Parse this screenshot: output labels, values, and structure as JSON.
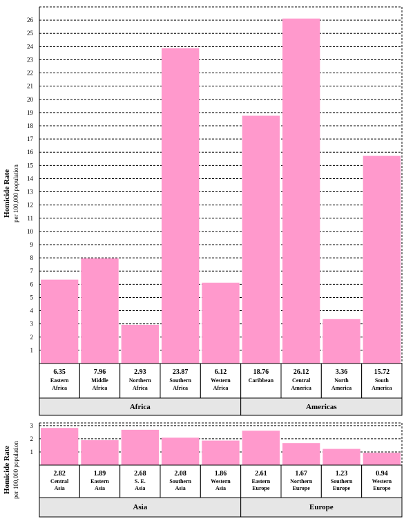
{
  "chart_data": [
    {
      "type": "bar",
      "ylabel": "Homicide Rate",
      "ylabel_sub": "per 100,000 population",
      "ylim": [
        0,
        27
      ],
      "yticks": [
        1,
        2,
        3,
        4,
        5,
        6,
        7,
        8,
        9,
        10,
        11,
        12,
        13,
        14,
        15,
        16,
        17,
        18,
        19,
        20,
        21,
        22,
        23,
        24,
        25,
        26
      ],
      "grid": true,
      "groups": [
        {
          "name": "Africa",
          "categories": [
            {
              "line1": "Eastern",
              "line2": "Africa",
              "value": 6.35,
              "label": "6.35"
            },
            {
              "line1": "Middle",
              "line2": "Africa",
              "value": 7.96,
              "label": "7.96"
            },
            {
              "line1": "Northern",
              "line2": "Africa",
              "value": 2.93,
              "label": "2.93"
            },
            {
              "line1": "Southern",
              "line2": "Africa",
              "value": 23.87,
              "label": "23.87"
            },
            {
              "line1": "Western",
              "line2": "Africa",
              "value": 6.12,
              "label": "6.12"
            }
          ]
        },
        {
          "name": "Americas",
          "categories": [
            {
              "line1": "Caribbean",
              "line2": "",
              "value": 18.76,
              "label": "18.76"
            },
            {
              "line1": "Central",
              "line2": "America",
              "value": 26.12,
              "label": "26.12"
            },
            {
              "line1": "North",
              "line2": "America",
              "value": 3.36,
              "label": "3.36"
            },
            {
              "line1": "South",
              "line2": "America",
              "value": 15.72,
              "label": "15.72"
            }
          ]
        }
      ],
      "bar_color": "#ff99cc"
    },
    {
      "type": "bar",
      "ylabel": "Homicide Rate",
      "ylabel_sub": "per 100,000 population",
      "ylim": [
        0,
        3.2
      ],
      "yticks": [
        1,
        2,
        3
      ],
      "grid": true,
      "groups": [
        {
          "name": "Asia",
          "categories": [
            {
              "line1": "Central",
              "line2": "Asia",
              "value": 2.82,
              "label": "2.82"
            },
            {
              "line1": "Eastern",
              "line2": "Asia",
              "value": 1.89,
              "label": "1.89"
            },
            {
              "line1": "S. E.",
              "line2": "Asia",
              "value": 2.68,
              "label": "2.68"
            },
            {
              "line1": "Southern",
              "line2": "Asia",
              "value": 2.08,
              "label": "2.08"
            },
            {
              "line1": "Western",
              "line2": "Asia",
              "value": 1.86,
              "label": "1.86"
            }
          ]
        },
        {
          "name": "Europe",
          "categories": [
            {
              "line1": "Eastern",
              "line2": "Europe",
              "value": 2.61,
              "label": "2.61"
            },
            {
              "line1": "Northern",
              "line2": "Europe",
              "value": 1.67,
              "label": "1.67"
            },
            {
              "line1": "Southern",
              "line2": "Europe",
              "value": 1.23,
              "label": "1.23"
            },
            {
              "line1": "Western",
              "line2": "Europe",
              "value": 0.94,
              "label": "0.94"
            }
          ]
        }
      ],
      "bar_color": "#ff99cc"
    }
  ]
}
